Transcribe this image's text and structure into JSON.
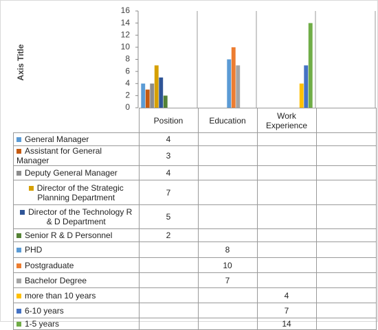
{
  "chart_data": {
    "type": "bar",
    "y_axis_label": "Axis Title",
    "categories": [
      "Position",
      "Education",
      "Work Experience",
      null
    ],
    "ylim": [
      0,
      16
    ],
    "yticks": [
      0,
      2,
      4,
      6,
      8,
      10,
      12,
      14,
      16
    ],
    "grid": true,
    "series": [
      {
        "name": "General Manager",
        "color": "#5b9bd5",
        "values": [
          4,
          null,
          null,
          null
        ]
      },
      {
        "name": "Assistant for General Manager",
        "color": "#c55a11",
        "values": [
          3,
          null,
          null,
          null
        ]
      },
      {
        "name": "Deputy General Manager",
        "color": "#8c8c8c",
        "values": [
          4,
          null,
          null,
          null
        ]
      },
      {
        "name": "Director of the Strategic Planning Department",
        "color": "#d6a000",
        "values": [
          7,
          null,
          null,
          null
        ]
      },
      {
        "name": "Director of the Technology R & D Department",
        "color": "#2f5597",
        "values": [
          5,
          null,
          null,
          null
        ]
      },
      {
        "name": "Senior R & D Personnel",
        "color": "#548235",
        "values": [
          2,
          null,
          null,
          null
        ]
      },
      {
        "name": "PHD",
        "color": "#5b9bd5",
        "values": [
          null,
          8,
          null,
          null
        ]
      },
      {
        "name": "Postgraduate",
        "color": "#ed7d31",
        "values": [
          null,
          10,
          null,
          null
        ]
      },
      {
        "name": "Bachelor Degree",
        "color": "#a5a5a5",
        "values": [
          null,
          7,
          null,
          null
        ]
      },
      {
        "name": "more than 10 years",
        "color": "#ffc000",
        "values": [
          null,
          null,
          4,
          null
        ]
      },
      {
        "name": "6-10 years",
        "color": "#4472c4",
        "values": [
          null,
          null,
          7,
          null
        ]
      },
      {
        "name": "1-5 years",
        "color": "#70ad47",
        "values": [
          null,
          null,
          14,
          null
        ]
      }
    ]
  }
}
